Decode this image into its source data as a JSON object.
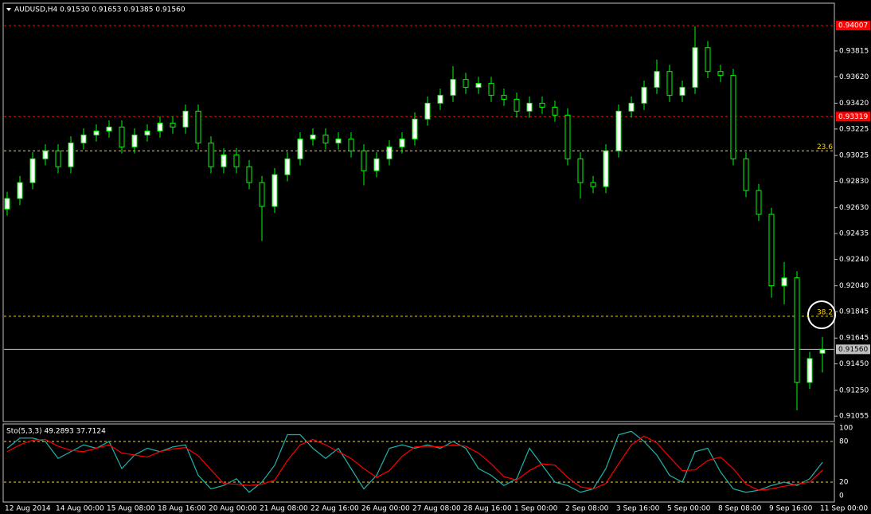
{
  "chart_data": [
    {
      "type": "candlestick",
      "title": "AUDUSD,H4 0.91530 0.91653 0.91385 0.91560",
      "categories": [
        "12 Aug 2014",
        null,
        null,
        null,
        "14 Aug 00:00",
        null,
        null,
        null,
        "15 Aug 08:00",
        null,
        null,
        null,
        "18 Aug 16:00",
        null,
        null,
        null,
        "20 Aug 00:00",
        null,
        null,
        null,
        "21 Aug 08:00",
        null,
        null,
        null,
        "22 Aug 16:00",
        null,
        null,
        null,
        "26 Aug 00:00",
        null,
        null,
        null,
        "27 Aug 08:00",
        null,
        null,
        null,
        "28 Aug 16:00",
        null,
        null,
        null,
        "1 Sep 00:00",
        null,
        null,
        null,
        "2 Sep 08:00",
        null,
        null,
        null,
        "3 Sep 16:00",
        null,
        null,
        null,
        "5 Sep 00:00",
        null,
        null,
        null,
        "8 Sep 08:00",
        null,
        null,
        null,
        "9 Sep 16:00",
        null,
        null,
        null,
        "11 Sep 00:00"
      ],
      "open": [
        0.9262,
        0.927,
        0.9282,
        0.93,
        0.9306,
        0.9294,
        0.9312,
        0.9318,
        0.9321,
        0.9324,
        0.9309,
        0.9318,
        0.9321,
        0.9327,
        0.9324,
        0.9336,
        0.9312,
        0.9294,
        0.9303,
        0.9294,
        0.9282,
        0.9264,
        0.9288,
        0.93,
        0.9315,
        0.9318,
        0.9312,
        0.9315,
        0.9306,
        0.9291,
        0.93,
        0.9309,
        0.9315,
        0.933,
        0.9342,
        0.9348,
        0.936,
        0.9354,
        0.9357,
        0.9348,
        0.9345,
        0.9336,
        0.9342,
        0.9339,
        0.9333,
        0.93,
        0.9282,
        0.9279,
        0.9306,
        0.9336,
        0.9342,
        0.9354,
        0.9366,
        0.9348,
        0.9354,
        0.9384,
        0.9366,
        0.9363,
        0.93,
        0.9276,
        0.9258,
        0.9204,
        0.921,
        0.9131,
        0.9153
      ],
      "high": [
        0.9275,
        0.9287,
        0.9305,
        0.9311,
        0.9311,
        0.9317,
        0.9323,
        0.9326,
        0.9329,
        0.9329,
        0.9323,
        0.9326,
        0.9332,
        0.9332,
        0.9341,
        0.9341,
        0.9317,
        0.9308,
        0.9308,
        0.9299,
        0.9287,
        0.9293,
        0.9305,
        0.932,
        0.9323,
        0.9323,
        0.932,
        0.932,
        0.9311,
        0.9305,
        0.9314,
        0.932,
        0.9335,
        0.9347,
        0.9353,
        0.937,
        0.9365,
        0.9362,
        0.9362,
        0.9353,
        0.935,
        0.9347,
        0.9347,
        0.9344,
        0.9338,
        0.9305,
        0.9287,
        0.9311,
        0.9341,
        0.9347,
        0.9359,
        0.9375,
        0.9371,
        0.9359,
        0.94,
        0.9389,
        0.9371,
        0.9368,
        0.9305,
        0.9281,
        0.9263,
        0.9222,
        0.9215,
        0.9154,
        0.91653
      ],
      "low": [
        0.9257,
        0.9265,
        0.9277,
        0.9295,
        0.9289,
        0.9289,
        0.9307,
        0.9313,
        0.9316,
        0.9304,
        0.9304,
        0.9313,
        0.9316,
        0.9319,
        0.9319,
        0.9307,
        0.9289,
        0.9289,
        0.9289,
        0.9277,
        0.9238,
        0.9259,
        0.9283,
        0.9295,
        0.931,
        0.9307,
        0.9307,
        0.9301,
        0.928,
        0.9286,
        0.9295,
        0.9304,
        0.931,
        0.9325,
        0.9337,
        0.9343,
        0.9349,
        0.9349,
        0.9343,
        0.934,
        0.9331,
        0.9331,
        0.9334,
        0.9328,
        0.9295,
        0.927,
        0.9274,
        0.9274,
        0.9301,
        0.9331,
        0.9337,
        0.9349,
        0.9343,
        0.9343,
        0.9349,
        0.9361,
        0.9358,
        0.9295,
        0.9271,
        0.9253,
        0.9195,
        0.919,
        0.911,
        0.9126,
        0.91385
      ],
      "close": [
        0.927,
        0.9282,
        0.93,
        0.9306,
        0.9294,
        0.9312,
        0.9318,
        0.9321,
        0.9324,
        0.9309,
        0.9318,
        0.9321,
        0.9327,
        0.9324,
        0.9336,
        0.9312,
        0.9294,
        0.9303,
        0.9294,
        0.9282,
        0.9264,
        0.9288,
        0.93,
        0.9315,
        0.9318,
        0.9312,
        0.9315,
        0.9306,
        0.9291,
        0.93,
        0.9309,
        0.9315,
        0.933,
        0.9342,
        0.9348,
        0.936,
        0.9354,
        0.9357,
        0.9348,
        0.9345,
        0.9336,
        0.9342,
        0.9339,
        0.9333,
        0.93,
        0.9282,
        0.9279,
        0.9306,
        0.9336,
        0.9342,
        0.9354,
        0.9366,
        0.9348,
        0.9354,
        0.9384,
        0.9366,
        0.9363,
        0.93,
        0.9276,
        0.9258,
        0.9204,
        0.921,
        0.9131,
        0.9149,
        0.9156
      ],
      "up_color": "#ffffff",
      "down_color": "#000000",
      "wick_color": "#00ff00",
      "ylim": [
        0.9102,
        0.9417
      ],
      "yticks": [
        0.93815,
        {
          "value": 0.9362,
          "label": "0.93620"
        },
        {
          "value": 0.9342,
          "label": "0.93420"
        },
        0.93225,
        0.93025,
        {
          "value": 0.9283,
          "label": "0.92830"
        },
        {
          "value": 0.9263,
          "label": "0.92630"
        },
        0.92435,
        {
          "value": 0.9224,
          "label": "0.92240"
        },
        {
          "value": 0.9204,
          "label": "0.92040"
        },
        0.91845,
        0.91645,
        {
          "value": 0.9145,
          "label": "0.91450"
        },
        {
          "value": 0.9125,
          "label": "0.91250"
        },
        0.91055
      ],
      "levels": [
        {
          "value": 0.94007,
          "label": "0.94007",
          "color": "#ff0000",
          "axis_box": true
        },
        {
          "value": 0.93319,
          "label": "0.93319",
          "color": "#ff0000",
          "axis_box": true
        },
        {
          "value": 0.9306,
          "label": "23.6",
          "color": "#ffd700",
          "axis_box": false
        },
        {
          "value": 0.9181,
          "label": "38.2",
          "color": "#ffd700",
          "axis_box": false
        },
        {
          "value": 0.9156,
          "label": "0.91560",
          "color": "#c0c0c0",
          "axis_box": true
        }
      ]
    },
    {
      "type": "line",
      "title": "Sto(5,3,3) 49.2893 37.7124",
      "series": [
        {
          "color": "#20b2aa",
          "values": [
            70,
            85,
            85,
            80,
            55,
            65,
            75,
            70,
            80,
            40,
            60,
            70,
            65,
            72,
            75,
            30,
            10,
            15,
            25,
            5,
            20,
            45,
            90,
            90,
            70,
            55,
            70,
            40,
            10,
            30,
            70,
            75,
            70,
            75,
            70,
            80,
            70,
            40,
            30,
            15,
            25,
            70,
            45,
            20,
            15,
            5,
            10,
            40,
            90,
            95,
            80,
            60,
            30,
            20,
            65,
            70,
            35,
            10,
            5,
            8,
            15,
            20,
            15,
            25,
            49.2893
          ]
        },
        {
          "color": "#ff0000",
          "values": [
            65,
            75,
            82,
            83,
            73,
            67,
            65,
            70,
            75,
            63,
            60,
            57,
            65,
            69,
            71,
            59,
            38,
            18,
            17,
            15,
            17,
            23,
            52,
            75,
            83,
            75,
            65,
            55,
            40,
            27,
            37,
            58,
            72,
            73,
            72,
            75,
            73,
            63,
            47,
            28,
            23,
            37,
            47,
            45,
            27,
            13,
            10,
            18,
            47,
            75,
            88,
            78,
            57,
            37,
            38,
            52,
            57,
            40,
            17,
            8,
            10,
            14,
            17,
            20,
            37.7124
          ]
        }
      ],
      "ylim": [
        0,
        100
      ],
      "yticks": [
        100,
        80,
        20,
        0
      ],
      "dashed_ticks": [
        80,
        20
      ]
    }
  ]
}
